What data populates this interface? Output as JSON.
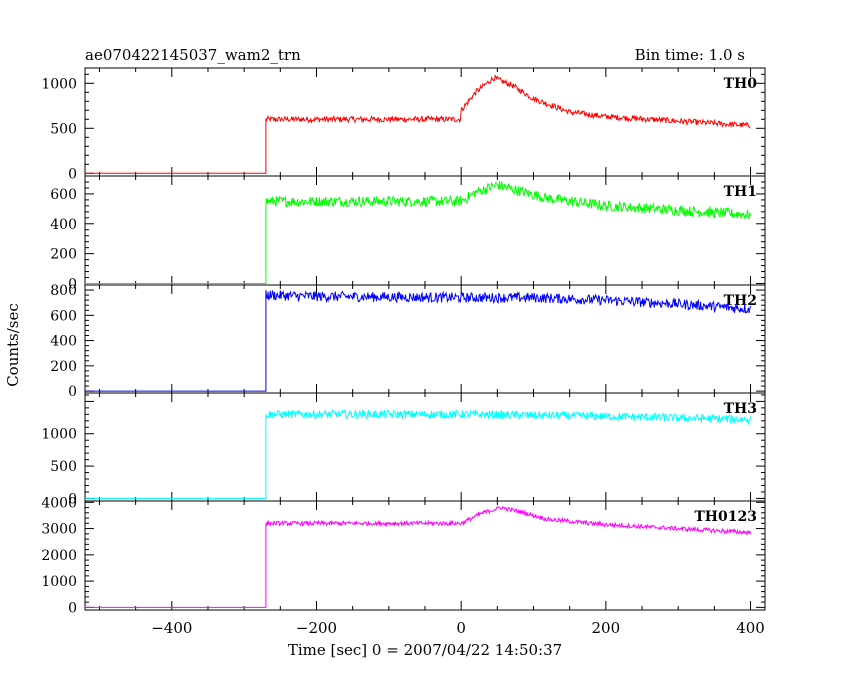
{
  "header": {
    "title": "ae070422145037_wam2_trn",
    "bin_time": "Bin time: 1.0 s"
  },
  "chart_data": {
    "type": "line",
    "xlabel": "Time [sec] 0 = 2007/04/22 14:50:37",
    "ylabel": "Counts/sec",
    "xlim": [
      -520,
      420
    ],
    "xticks": [
      -400,
      -200,
      0,
      200,
      400
    ],
    "x_tick_labels": [
      "−400",
      "−200",
      "0",
      "200",
      "400"
    ],
    "step_time": -270,
    "x_end": 400,
    "panels": [
      {
        "name": "TH0",
        "color": "#ff0000",
        "ylim": [
          -30,
          1170
        ],
        "yticks": [
          0,
          500,
          1000
        ],
        "data": [
          [
            -520,
            0
          ],
          [
            -270,
            0
          ],
          [
            -270,
            600
          ],
          [
            0,
            600
          ],
          [
            0,
            700
          ],
          [
            20,
            900
          ],
          [
            45,
            1060
          ],
          [
            70,
            980
          ],
          [
            100,
            830
          ],
          [
            150,
            680
          ],
          [
            200,
            630
          ],
          [
            300,
            580
          ],
          [
            400,
            530
          ]
        ],
        "noise": 20
      },
      {
        "name": "TH1",
        "color": "#00ff00",
        "ylim": [
          -10,
          720
        ],
        "yticks": [
          0,
          200,
          400,
          600
        ],
        "data": [
          [
            -520,
            0
          ],
          [
            -270,
            0
          ],
          [
            -270,
            550
          ],
          [
            0,
            550
          ],
          [
            20,
            610
          ],
          [
            50,
            660
          ],
          [
            80,
            620
          ],
          [
            120,
            570
          ],
          [
            200,
            520
          ],
          [
            300,
            490
          ],
          [
            400,
            460
          ]
        ],
        "noise": 22
      },
      {
        "name": "TH2",
        "color": "#0000ff",
        "ylim": [
          -15,
          840
        ],
        "yticks": [
          0,
          200,
          400,
          600,
          800
        ],
        "data": [
          [
            -520,
            0
          ],
          [
            -270,
            0
          ],
          [
            -270,
            760
          ],
          [
            -200,
            750
          ],
          [
            0,
            740
          ],
          [
            100,
            740
          ],
          [
            200,
            720
          ],
          [
            300,
            690
          ],
          [
            400,
            650
          ]
        ],
        "noise": 25
      },
      {
        "name": "TH3",
        "color": "#00ffff",
        "ylim": [
          -40,
          1630
        ],
        "yticks": [
          0,
          500,
          1000
        ],
        "data": [
          [
            -520,
            0
          ],
          [
            -270,
            0
          ],
          [
            -270,
            1300
          ],
          [
            0,
            1300
          ],
          [
            200,
            1270
          ],
          [
            400,
            1220
          ]
        ],
        "noise": 40
      },
      {
        "name": "TH0123",
        "color": "#ff00ff",
        "ylim": [
          -100,
          4050
        ],
        "yticks": [
          0,
          1000,
          2000,
          3000,
          4000
        ],
        "data": [
          [
            -520,
            0
          ],
          [
            -270,
            0
          ],
          [
            -270,
            3200
          ],
          [
            0,
            3200
          ],
          [
            30,
            3600
          ],
          [
            55,
            3800
          ],
          [
            80,
            3650
          ],
          [
            120,
            3350
          ],
          [
            200,
            3150
          ],
          [
            300,
            3000
          ],
          [
            400,
            2850
          ]
        ],
        "noise": 50
      }
    ]
  }
}
